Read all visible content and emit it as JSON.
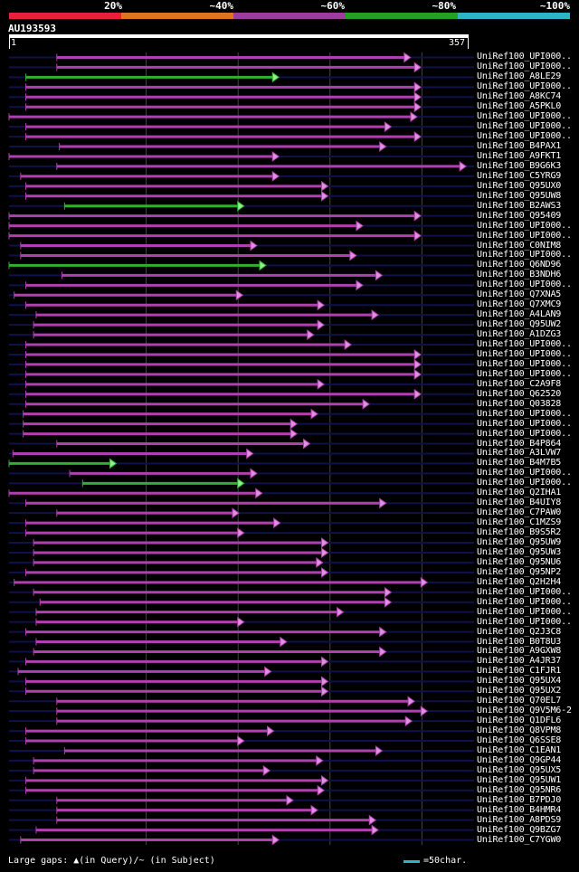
{
  "colors": {
    "band_20": "#e8203a",
    "band_40": "#e0741f",
    "band_60": "#9a3e9a",
    "band_80": "#24a024",
    "band_100": "#2bb5c7",
    "hit_magenta": "#b040b0",
    "hit_green": "#30b030",
    "arrow_magenta": "#e090e0",
    "arrow_green": "#90f090",
    "background": "#000000",
    "track": "#10104a",
    "gridline": "#444444"
  },
  "header": {
    "identity_labels": [
      "20%",
      "~40%",
      "~60%",
      "~80%",
      "~100%"
    ],
    "query_title": "AU193593",
    "query_start": "1",
    "query_end": "357"
  },
  "legend": {
    "gaps_text": "Large gaps: ▲(in Query)/~ (in Subject)",
    "scale_text": "=50char."
  },
  "chart_data": {
    "type": "alignment_overview",
    "query_length": 357,
    "hits": [
      {
        "label": "UniRef100_UPI000..",
        "start": 38,
        "end": 312,
        "identity": "~60%"
      },
      {
        "label": "UniRef100_UPI000..",
        "start": 38,
        "end": 320,
        "identity": "~60%"
      },
      {
        "label": "UniRef100_A8LE29",
        "start": 14,
        "end": 210,
        "identity": "~80%"
      },
      {
        "label": "UniRef100_UPI000..",
        "start": 14,
        "end": 320,
        "identity": "~60%"
      },
      {
        "label": "UniRef100_A8KC74",
        "start": 14,
        "end": 320,
        "identity": "~60%"
      },
      {
        "label": "UniRef100_A5PKL0",
        "start": 14,
        "end": 320,
        "identity": "~60%"
      },
      {
        "label": "UniRef100_UPI000..",
        "start": 1,
        "end": 317,
        "identity": "~60%"
      },
      {
        "label": "UniRef100_UPI000..",
        "start": 14,
        "end": 297,
        "identity": "~60%"
      },
      {
        "label": "UniRef100_UPI000..",
        "start": 14,
        "end": 320,
        "identity": "~60%"
      },
      {
        "label": "UniRef100_B4PAX1",
        "start": 40,
        "end": 293,
        "identity": "~60%"
      },
      {
        "label": "UniRef100_A9FKT1",
        "start": 1,
        "end": 210,
        "identity": "~60%"
      },
      {
        "label": "UniRef100_B9G6K3",
        "start": 38,
        "end": 355,
        "identity": "~60%"
      },
      {
        "label": "UniRef100_C5YRG9",
        "start": 10,
        "end": 210,
        "identity": "~60%"
      },
      {
        "label": "UniRef100_Q95UX0",
        "start": 14,
        "end": 248,
        "identity": "~60%"
      },
      {
        "label": "UniRef100_Q95UW8",
        "start": 14,
        "end": 248,
        "identity": "~60%"
      },
      {
        "label": "UniRef100_B2AWS3",
        "start": 44,
        "end": 183,
        "identity": "~80%"
      },
      {
        "label": "UniRef100_Q95409",
        "start": 1,
        "end": 320,
        "identity": "~60%"
      },
      {
        "label": "UniRef100_UPI000..",
        "start": 1,
        "end": 275,
        "identity": "~60%"
      },
      {
        "label": "UniRef100_UPI000..",
        "start": 1,
        "end": 320,
        "identity": "~60%"
      },
      {
        "label": "UniRef100_C0NIM8",
        "start": 10,
        "end": 193,
        "identity": "~60%"
      },
      {
        "label": "UniRef100_UPI000..",
        "start": 10,
        "end": 270,
        "identity": "~60%"
      },
      {
        "label": "UniRef100_Q6ND96",
        "start": 1,
        "end": 200,
        "identity": "~80%"
      },
      {
        "label": "UniRef100_B3NDH6",
        "start": 42,
        "end": 290,
        "identity": "~60%"
      },
      {
        "label": "UniRef100_UPI000..",
        "start": 14,
        "end": 275,
        "identity": "~60%"
      },
      {
        "label": "UniRef100_Q7XNA5",
        "start": 5,
        "end": 182,
        "identity": "~60%"
      },
      {
        "label": "UniRef100_Q7XMC9",
        "start": 14,
        "end": 245,
        "identity": "~60%"
      },
      {
        "label": "UniRef100_A4LAN9",
        "start": 22,
        "end": 287,
        "identity": "~60%"
      },
      {
        "label": "UniRef100_Q95UW2",
        "start": 20,
        "end": 245,
        "identity": "~60%"
      },
      {
        "label": "UniRef100_A1DZG3",
        "start": 20,
        "end": 237,
        "identity": "~60%"
      },
      {
        "label": "UniRef100_UPI000..",
        "start": 14,
        "end": 266,
        "identity": "~60%"
      },
      {
        "label": "UniRef100_UPI000..",
        "start": 14,
        "end": 320,
        "identity": "~60%"
      },
      {
        "label": "UniRef100_UPI000..",
        "start": 14,
        "end": 320,
        "identity": "~60%"
      },
      {
        "label": "UniRef100_UPI000..",
        "start": 14,
        "end": 320,
        "identity": "~60%"
      },
      {
        "label": "UniRef100_C2A9F8",
        "start": 14,
        "end": 245,
        "identity": "~60%"
      },
      {
        "label": "UniRef100_Q62520",
        "start": 14,
        "end": 320,
        "identity": "~60%"
      },
      {
        "label": "UniRef100_Q03828",
        "start": 14,
        "end": 280,
        "identity": "~60%"
      },
      {
        "label": "UniRef100_UPI000..",
        "start": 12,
        "end": 240,
        "identity": "~60%"
      },
      {
        "label": "UniRef100_UPI000..",
        "start": 12,
        "end": 224,
        "identity": "~60%"
      },
      {
        "label": "UniRef100_UPI000..",
        "start": 12,
        "end": 224,
        "identity": "~60%"
      },
      {
        "label": "UniRef100_B4P864",
        "start": 38,
        "end": 234,
        "identity": "~60%"
      },
      {
        "label": "UniRef100_A3LVW7",
        "start": 4,
        "end": 190,
        "identity": "~60%"
      },
      {
        "label": "UniRef100_B4M7B5",
        "start": 1,
        "end": 84,
        "identity": "~80%"
      },
      {
        "label": "UniRef100_UPI000..",
        "start": 48,
        "end": 193,
        "identity": "~60%"
      },
      {
        "label": "UniRef100_UPI000..",
        "start": 58,
        "end": 183,
        "identity": "~80%"
      },
      {
        "label": "UniRef100_Q2IHA1",
        "start": 1,
        "end": 197,
        "identity": "~60%"
      },
      {
        "label": "UniRef100_B4UIY8",
        "start": 14,
        "end": 293,
        "identity": "~60%"
      },
      {
        "label": "UniRef100_C7PAW0",
        "start": 38,
        "end": 179,
        "identity": "~60%"
      },
      {
        "label": "UniRef100_C1MZS9",
        "start": 14,
        "end": 211,
        "identity": "~60%"
      },
      {
        "label": "UniRef100_B9S5R2",
        "start": 14,
        "end": 183,
        "identity": "~60%"
      },
      {
        "label": "UniRef100_Q95UW9",
        "start": 20,
        "end": 248,
        "identity": "~60%"
      },
      {
        "label": "UniRef100_Q95UW3",
        "start": 20,
        "end": 248,
        "identity": "~60%"
      },
      {
        "label": "UniRef100_Q95NU6",
        "start": 20,
        "end": 244,
        "identity": "~60%"
      },
      {
        "label": "UniRef100_Q95NP2",
        "start": 14,
        "end": 248,
        "identity": "~60%"
      },
      {
        "label": "UniRef100_Q2H2H4",
        "start": 5,
        "end": 325,
        "identity": "~60%"
      },
      {
        "label": "UniRef100_UPI000..",
        "start": 20,
        "end": 297,
        "identity": "~60%"
      },
      {
        "label": "UniRef100_UPI000..",
        "start": 25,
        "end": 297,
        "identity": "~60%"
      },
      {
        "label": "UniRef100_UPI000..",
        "start": 22,
        "end": 260,
        "identity": "~60%"
      },
      {
        "label": "UniRef100_UPI000..",
        "start": 22,
        "end": 183,
        "identity": "~60%"
      },
      {
        "label": "UniRef100_Q2J3C8",
        "start": 14,
        "end": 293,
        "identity": "~60%"
      },
      {
        "label": "UniRef100_B0T8U3",
        "start": 22,
        "end": 216,
        "identity": "~60%"
      },
      {
        "label": "UniRef100_A9GXW8",
        "start": 20,
        "end": 293,
        "identity": "~60%"
      },
      {
        "label": "UniRef100_A4JR37",
        "start": 14,
        "end": 248,
        "identity": "~60%"
      },
      {
        "label": "UniRef100_C1FJR1",
        "start": 8,
        "end": 204,
        "identity": "~60%"
      },
      {
        "label": "UniRef100_Q95UX4",
        "start": 14,
        "end": 248,
        "identity": "~60%"
      },
      {
        "label": "UniRef100_Q95UX2",
        "start": 14,
        "end": 248,
        "identity": "~60%"
      },
      {
        "label": "UniRef100_Q70EL7",
        "start": 38,
        "end": 315,
        "identity": "~60%"
      },
      {
        "label": "UniRef100_Q9V5M6-2",
        "start": 38,
        "end": 325,
        "identity": "~60%"
      },
      {
        "label": "UniRef100_Q1DFL6",
        "start": 38,
        "end": 313,
        "identity": "~60%"
      },
      {
        "label": "UniRef100_Q8VPM8",
        "start": 14,
        "end": 206,
        "identity": "~60%"
      },
      {
        "label": "UniRef100_Q6SSE8",
        "start": 14,
        "end": 183,
        "identity": "~60%"
      },
      {
        "label": "UniRef100_C1EAN1",
        "start": 44,
        "end": 290,
        "identity": "~60%"
      },
      {
        "label": "UniRef100_Q9GP44",
        "start": 20,
        "end": 244,
        "identity": "~60%"
      },
      {
        "label": "UniRef100_Q95UX5",
        "start": 20,
        "end": 203,
        "identity": "~60%"
      },
      {
        "label": "UniRef100_Q95UW1",
        "start": 14,
        "end": 248,
        "identity": "~60%"
      },
      {
        "label": "UniRef100_Q95NR6",
        "start": 14,
        "end": 245,
        "identity": "~60%"
      },
      {
        "label": "UniRef100_B7PDJ0",
        "start": 38,
        "end": 221,
        "identity": "~60%"
      },
      {
        "label": "UniRef100_B4HMR4",
        "start": 38,
        "end": 240,
        "identity": "~60%"
      },
      {
        "label": "UniRef100_A8PDS9",
        "start": 38,
        "end": 285,
        "identity": "~60%"
      },
      {
        "label": "UniRef100_Q9BZG7",
        "start": 22,
        "end": 287,
        "identity": "~60%"
      },
      {
        "label": "UniRef100_C7YGW0",
        "start": 10,
        "end": 210,
        "identity": "~60%"
      }
    ]
  }
}
